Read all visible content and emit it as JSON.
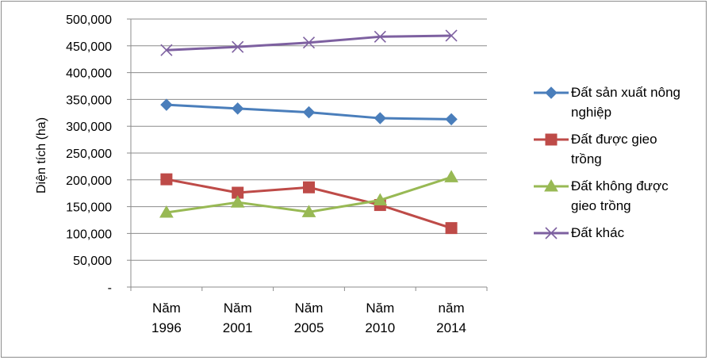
{
  "chart_data": {
    "type": "line",
    "categories": [
      [
        "Năm",
        "1996"
      ],
      [
        "Năm",
        "2001"
      ],
      [
        "Năm",
        "2005"
      ],
      [
        "Năm",
        "2010"
      ],
      [
        "năm",
        "2014"
      ]
    ],
    "ylabel": "Diện tích (ha)",
    "ylim": [
      0,
      500000
    ],
    "ytick_labels": [
      "-",
      "50,000",
      "100,000",
      "150,000",
      "200,000",
      "250,000",
      "300,000",
      "350,000",
      "400,000",
      "450,000",
      "500,000"
    ],
    "grid": true,
    "legend_position": "right",
    "series": [
      {
        "name": "Đất sản xuất nông nghiệp",
        "values": [
          340000,
          333000,
          326000,
          315000,
          313000
        ],
        "color": "#4a7ebb",
        "marker": "diamond"
      },
      {
        "name": "Đất được gieo trồng",
        "values": [
          201000,
          176000,
          186000,
          153000,
          110000
        ],
        "color": "#be4b48",
        "marker": "square"
      },
      {
        "name": "Đất không được gieo trồng",
        "values": [
          139000,
          158000,
          140000,
          162000,
          205000
        ],
        "color": "#98b954",
        "marker": "triangle"
      },
      {
        "name": "Đất khác",
        "values": [
          442000,
          448000,
          456000,
          467000,
          469000
        ],
        "color": "#7d60a0",
        "marker": "x"
      }
    ]
  },
  "legend": {
    "items": [
      {
        "lines": [
          "Đất sản xuất nông",
          "nghiệp"
        ]
      },
      {
        "lines": [
          "Đất được gieo",
          "trồng"
        ]
      },
      {
        "lines": [
          "Đất không  được",
          "gieo trồng"
        ]
      },
      {
        "lines": [
          "Đất khác"
        ]
      }
    ]
  }
}
